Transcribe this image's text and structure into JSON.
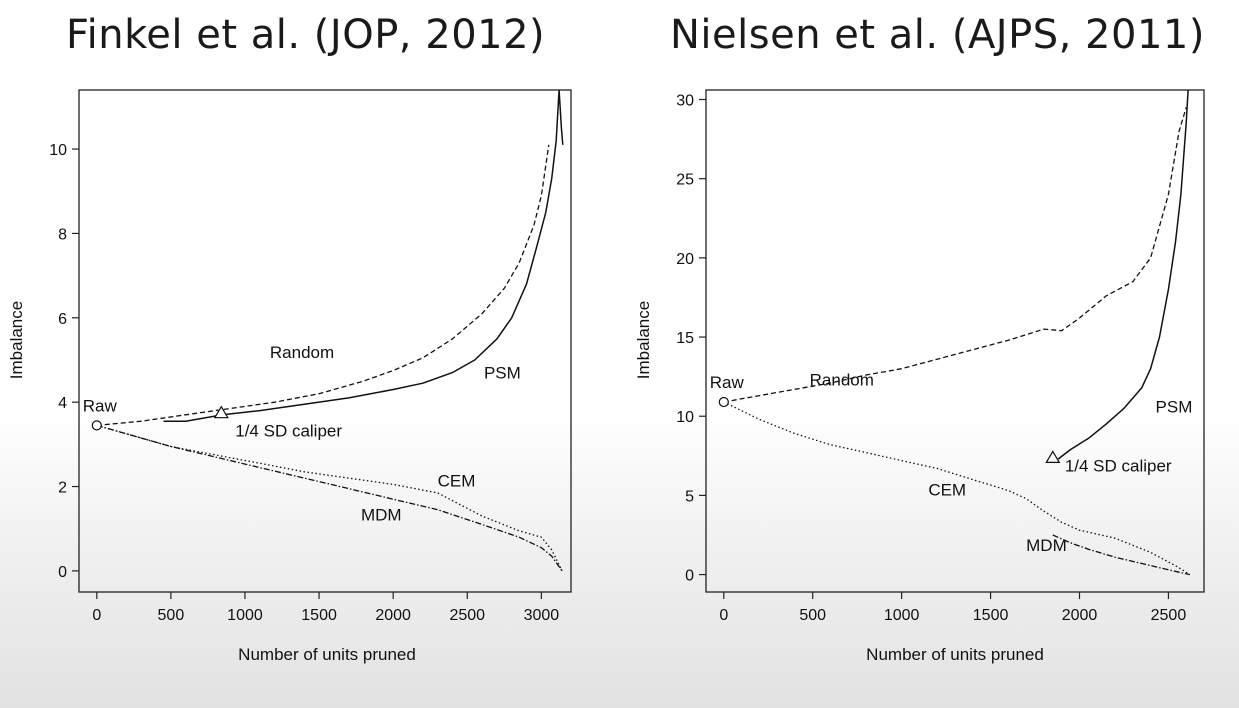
{
  "slide": {
    "left_title": "Finkel et al. (JOP, 2012)",
    "right_title": "Nielsen et al. (AJPS, 2011)"
  },
  "chart_data": [
    {
      "type": "line",
      "title": "Finkel et al. (JOP, 2012)",
      "xlabel": "Number of units pruned",
      "ylabel": "Imbalance",
      "xlim": [
        -120,
        3200
      ],
      "ylim": [
        -0.5,
        11.4
      ],
      "xticks": [
        0,
        500,
        1000,
        1500,
        2000,
        2500,
        3000
      ],
      "yticks": [
        0,
        2,
        4,
        6,
        8,
        10
      ],
      "grid": false,
      "legend": "none",
      "series": [
        {
          "name": "Random",
          "style": "dashed",
          "x": [
            0,
            300,
            600,
            900,
            1200,
            1500,
            1800,
            2000,
            2200,
            2400,
            2600,
            2750,
            2850,
            2950,
            3000,
            3050
          ],
          "y": [
            3.45,
            3.55,
            3.7,
            3.85,
            4.0,
            4.2,
            4.5,
            4.75,
            5.05,
            5.5,
            6.1,
            6.7,
            7.3,
            8.2,
            8.9,
            10.1
          ]
        },
        {
          "name": "PSM",
          "style": "solid",
          "x": [
            450,
            600,
            850,
            1100,
            1400,
            1700,
            2000,
            2200,
            2400,
            2550,
            2700,
            2800,
            2900,
            2970,
            3030,
            3070,
            3100,
            3120,
            3135,
            3145
          ],
          "y": [
            3.55,
            3.55,
            3.7,
            3.8,
            3.95,
            4.1,
            4.3,
            4.45,
            4.7,
            5.0,
            5.5,
            6.0,
            6.8,
            7.7,
            8.5,
            9.3,
            10.2,
            11.4,
            10.5,
            10.1
          ]
        },
        {
          "name": "CEM",
          "style": "dotted",
          "x": [
            0,
            250,
            500,
            800,
            1100,
            1400,
            1700,
            2000,
            2300,
            2600,
            2850,
            3000,
            3070,
            3140
          ],
          "y": [
            3.45,
            3.2,
            2.95,
            2.75,
            2.55,
            2.35,
            2.2,
            2.05,
            1.85,
            1.3,
            0.95,
            0.8,
            0.5,
            0.0
          ]
        },
        {
          "name": "MDM",
          "style": "dash-dot",
          "x": [
            0,
            250,
            500,
            800,
            1100,
            1400,
            1700,
            2000,
            2300,
            2600,
            2850,
            3000,
            3070,
            3140
          ],
          "y": [
            3.45,
            3.2,
            2.95,
            2.7,
            2.45,
            2.2,
            1.95,
            1.7,
            1.45,
            1.1,
            0.8,
            0.55,
            0.35,
            0.0
          ]
        }
      ],
      "markers": [
        {
          "label": "Raw",
          "shape": "circle",
          "x": 0,
          "y": 3.45
        },
        {
          "label": "1/4 SD caliper",
          "shape": "triangle",
          "x": 840,
          "y": 3.75
        }
      ],
      "annotations": [
        {
          "text": "Raw",
          "x": 0,
          "y": 3.45
        },
        {
          "text": "Random",
          "x": 1600,
          "y": 5.0
        },
        {
          "text": "PSM",
          "x": 2680,
          "y": 4.75
        },
        {
          "text": "1/4 SD caliper",
          "x": 840,
          "y": 3.75
        },
        {
          "text": "CEM",
          "x": 2300,
          "y": 2.0
        },
        {
          "text": "MDM",
          "x": 1850,
          "y": 1.2
        }
      ]
    },
    {
      "type": "line",
      "title": "Nielsen et al. (AJPS, 2011)",
      "xlabel": "Number of units pruned",
      "ylabel": "Imbalance",
      "xlim": [
        -100,
        2700
      ],
      "ylim": [
        -1.1,
        30.6
      ],
      "xticks": [
        0,
        500,
        1000,
        1500,
        2000,
        2500
      ],
      "yticks": [
        0,
        5,
        10,
        15,
        20,
        25,
        30
      ],
      "grid": false,
      "legend": "none",
      "series": [
        {
          "name": "Random",
          "style": "dashed",
          "x": [
            0,
            200,
            400,
            600,
            800,
            1000,
            1200,
            1400,
            1600,
            1800,
            1900,
            2000,
            2150,
            2300,
            2400,
            2500,
            2560,
            2600
          ],
          "y": [
            10.9,
            11.3,
            11.7,
            12.1,
            12.6,
            13.0,
            13.6,
            14.2,
            14.8,
            15.5,
            15.4,
            16.2,
            17.6,
            18.5,
            20.0,
            24.0,
            28.0,
            29.5
          ]
        },
        {
          "name": "PSM",
          "style": "solid",
          "x": [
            1880,
            1950,
            2050,
            2150,
            2250,
            2350,
            2400,
            2450,
            2500,
            2540,
            2570,
            2590,
            2600,
            2610,
            2615,
            2620
          ],
          "y": [
            7.3,
            7.9,
            8.6,
            9.5,
            10.5,
            11.8,
            13.0,
            15.0,
            18.0,
            21.0,
            24.0,
            27.0,
            28.5,
            30.5,
            31.5,
            33.0
          ]
        },
        {
          "name": "CEM",
          "style": "dotted",
          "x": [
            0,
            200,
            400,
            600,
            800,
            1000,
            1200,
            1400,
            1600,
            1700,
            1800,
            1900,
            2000,
            2200,
            2400,
            2550,
            2620
          ],
          "y": [
            10.9,
            9.8,
            8.9,
            8.2,
            7.7,
            7.2,
            6.7,
            6.0,
            5.3,
            4.8,
            4.0,
            3.3,
            2.8,
            2.3,
            1.4,
            0.5,
            0.0
          ]
        },
        {
          "name": "MDM",
          "style": "dash-dot",
          "x": [
            1850,
            1950,
            2050,
            2200,
            2350,
            2500,
            2620
          ],
          "y": [
            2.5,
            2.0,
            1.6,
            1.1,
            0.7,
            0.3,
            0.0
          ]
        }
      ],
      "markers": [
        {
          "label": "Raw",
          "shape": "circle",
          "x": 0,
          "y": 10.9
        },
        {
          "label": "1/4 SD caliper",
          "shape": "triangle",
          "x": 1850,
          "y": 7.4
        }
      ],
      "annotations": [
        {
          "text": "Raw",
          "x": 0,
          "y": 10.9
        },
        {
          "text": "Random",
          "x": 1000,
          "y": 11.8
        },
        {
          "text": "PSM",
          "x": 2450,
          "y": 10.5
        },
        {
          "text": "1/4 SD caliper",
          "x": 1850,
          "y": 7.4
        },
        {
          "text": "CEM",
          "x": 1150,
          "y": 5.0
        },
        {
          "text": "MDM",
          "x": 1700,
          "y": 1.5
        }
      ]
    }
  ]
}
